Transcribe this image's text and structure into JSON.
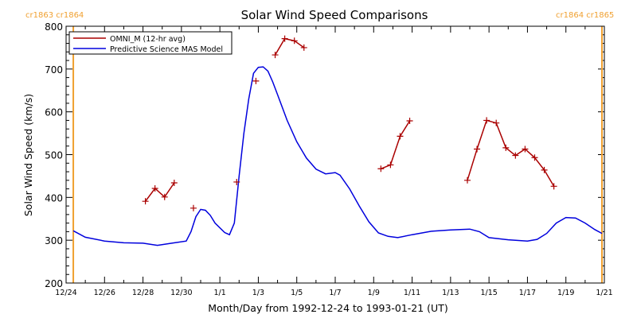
{
  "chart_data": {
    "type": "line",
    "title": "Solar Wind Speed Comparisons",
    "xlabel": "Month/Day from 1992-12-24 to 1993-01-21 (UT)",
    "ylabel": "Solar Wind Speed (km/s)",
    "xlim": [
      "1992-12-24",
      "1993-01-21"
    ],
    "ylim": [
      200,
      800
    ],
    "yticks": [
      200,
      300,
      400,
      500,
      600,
      700,
      800
    ],
    "xtick_labels": [
      "12/24",
      "12/26",
      "12/28",
      "12/30",
      "1/1",
      "1/3",
      "1/5",
      "1/7",
      "1/9",
      "1/11",
      "1/13",
      "1/15",
      "1/17",
      "1/19",
      "1/21"
    ],
    "xtick_dates": [
      "1992-12-24",
      "1992-12-26",
      "1992-12-28",
      "1992-12-30",
      "1993-01-01",
      "1993-01-03",
      "1993-01-05",
      "1993-01-07",
      "1993-01-09",
      "1993-01-11",
      "1993-01-13",
      "1993-01-15",
      "1993-01-17",
      "1993-01-19",
      "1993-01-21"
    ],
    "grid": false,
    "legend": {
      "position": "top-left"
    },
    "rotation_markers": [
      {
        "date": "1992-12-24 09:00",
        "color": "#f0a030",
        "labels": [
          "cr1863",
          "cr1864"
        ]
      },
      {
        "date": "1993-01-20 21:00",
        "color": "#f0a030",
        "labels": [
          "cr1864",
          "cr1865"
        ]
      }
    ],
    "series": [
      {
        "name": "OMNI_M (12-hr avg)",
        "color": "#aa0000",
        "marker": "+",
        "segments": [
          [
            [
              "1992-12-28 03:00",
              391
            ],
            [
              "1992-12-28 15:00",
              421
            ],
            [
              "1992-12-29 03:00",
              401
            ],
            [
              "1992-12-29 15:00",
              434
            ]
          ],
          [
            [
              "1992-12-30 15:00",
              375
            ]
          ],
          [
            [
              "1993-01-01 21:00",
              436
            ]
          ],
          [
            [
              "1993-01-02 21:00",
              672
            ]
          ],
          [
            [
              "1993-01-03 21:00",
              733
            ],
            [
              "1993-01-04 09:00",
              771
            ],
            [
              "1993-01-04 21:00",
              766
            ],
            [
              "1993-01-05 09:00",
              750
            ]
          ],
          [
            [
              "1993-01-09 09:00",
              467
            ],
            [
              "1993-01-09 21:00",
              476
            ],
            [
              "1993-01-10 09:00",
              543
            ],
            [
              "1993-01-10 21:00",
              579
            ]
          ],
          [
            [
              "1993-01-13 21:00",
              440
            ],
            [
              "1993-01-14 09:00",
              513
            ],
            [
              "1993-01-14 21:00",
              580
            ],
            [
              "1993-01-15 09:00",
              574
            ],
            [
              "1993-01-15 21:00",
              516
            ],
            [
              "1993-01-16 09:00",
              498
            ],
            [
              "1993-01-16 21:00",
              513
            ],
            [
              "1993-01-17 09:00",
              493
            ],
            [
              "1993-01-17 21:00",
              464
            ],
            [
              "1993-01-18 09:00",
              426
            ]
          ]
        ]
      },
      {
        "name": "Predictive Science MAS Model",
        "color": "#0000dd",
        "points": [
          [
            "1992-12-24 09:00",
            322
          ],
          [
            "1992-12-25 00:00",
            307
          ],
          [
            "1992-12-26 00:00",
            298
          ],
          [
            "1992-12-27 00:00",
            294
          ],
          [
            "1992-12-28 00:00",
            293
          ],
          [
            "1992-12-28 18:00",
            288
          ],
          [
            "1992-12-29 12:00",
            293
          ],
          [
            "1992-12-30 06:00",
            298
          ],
          [
            "1992-12-30 12:00",
            320
          ],
          [
            "1992-12-30 18:00",
            355
          ],
          [
            "1992-12-31 00:00",
            372
          ],
          [
            "1992-12-31 06:00",
            370
          ],
          [
            "1992-12-31 12:00",
            358
          ],
          [
            "1992-12-31 18:00",
            340
          ],
          [
            "1993-01-01 06:00",
            318
          ],
          [
            "1993-01-01 12:00",
            313
          ],
          [
            "1993-01-01 18:00",
            340
          ],
          [
            "1993-01-02 00:00",
            450
          ],
          [
            "1993-01-02 06:00",
            550
          ],
          [
            "1993-01-02 12:00",
            630
          ],
          [
            "1993-01-02 18:00",
            690
          ],
          [
            "1993-01-03 00:00",
            704
          ],
          [
            "1993-01-03 06:00",
            705
          ],
          [
            "1993-01-03 12:00",
            695
          ],
          [
            "1993-01-03 18:00",
            670
          ],
          [
            "1993-01-04 00:00",
            640
          ],
          [
            "1993-01-04 12:00",
            580
          ],
          [
            "1993-01-05 00:00",
            530
          ],
          [
            "1993-01-05 12:00",
            492
          ],
          [
            "1993-01-06 00:00",
            466
          ],
          [
            "1993-01-06 12:00",
            455
          ],
          [
            "1993-01-07 00:00",
            458
          ],
          [
            "1993-01-07 06:00",
            452
          ],
          [
            "1993-01-07 18:00",
            420
          ],
          [
            "1993-01-08 06:00",
            380
          ],
          [
            "1993-01-08 18:00",
            343
          ],
          [
            "1993-01-09 06:00",
            317
          ],
          [
            "1993-01-09 18:00",
            309
          ],
          [
            "1993-01-10 06:00",
            306
          ],
          [
            "1993-01-11 00:00",
            313
          ],
          [
            "1993-01-12 00:00",
            321
          ],
          [
            "1993-01-13 00:00",
            324
          ],
          [
            "1993-01-14 00:00",
            326
          ],
          [
            "1993-01-14 12:00",
            320
          ],
          [
            "1993-01-15 00:00",
            306
          ],
          [
            "1993-01-16 00:00",
            301
          ],
          [
            "1993-01-17 00:00",
            298
          ],
          [
            "1993-01-17 12:00",
            302
          ],
          [
            "1993-01-18 00:00",
            316
          ],
          [
            "1993-01-18 12:00",
            340
          ],
          [
            "1993-01-19 00:00",
            353
          ],
          [
            "1993-01-19 12:00",
            352
          ],
          [
            "1993-01-20 00:00",
            340
          ],
          [
            "1993-01-20 12:00",
            325
          ],
          [
            "1993-01-20 21:00",
            316
          ]
        ]
      }
    ]
  }
}
